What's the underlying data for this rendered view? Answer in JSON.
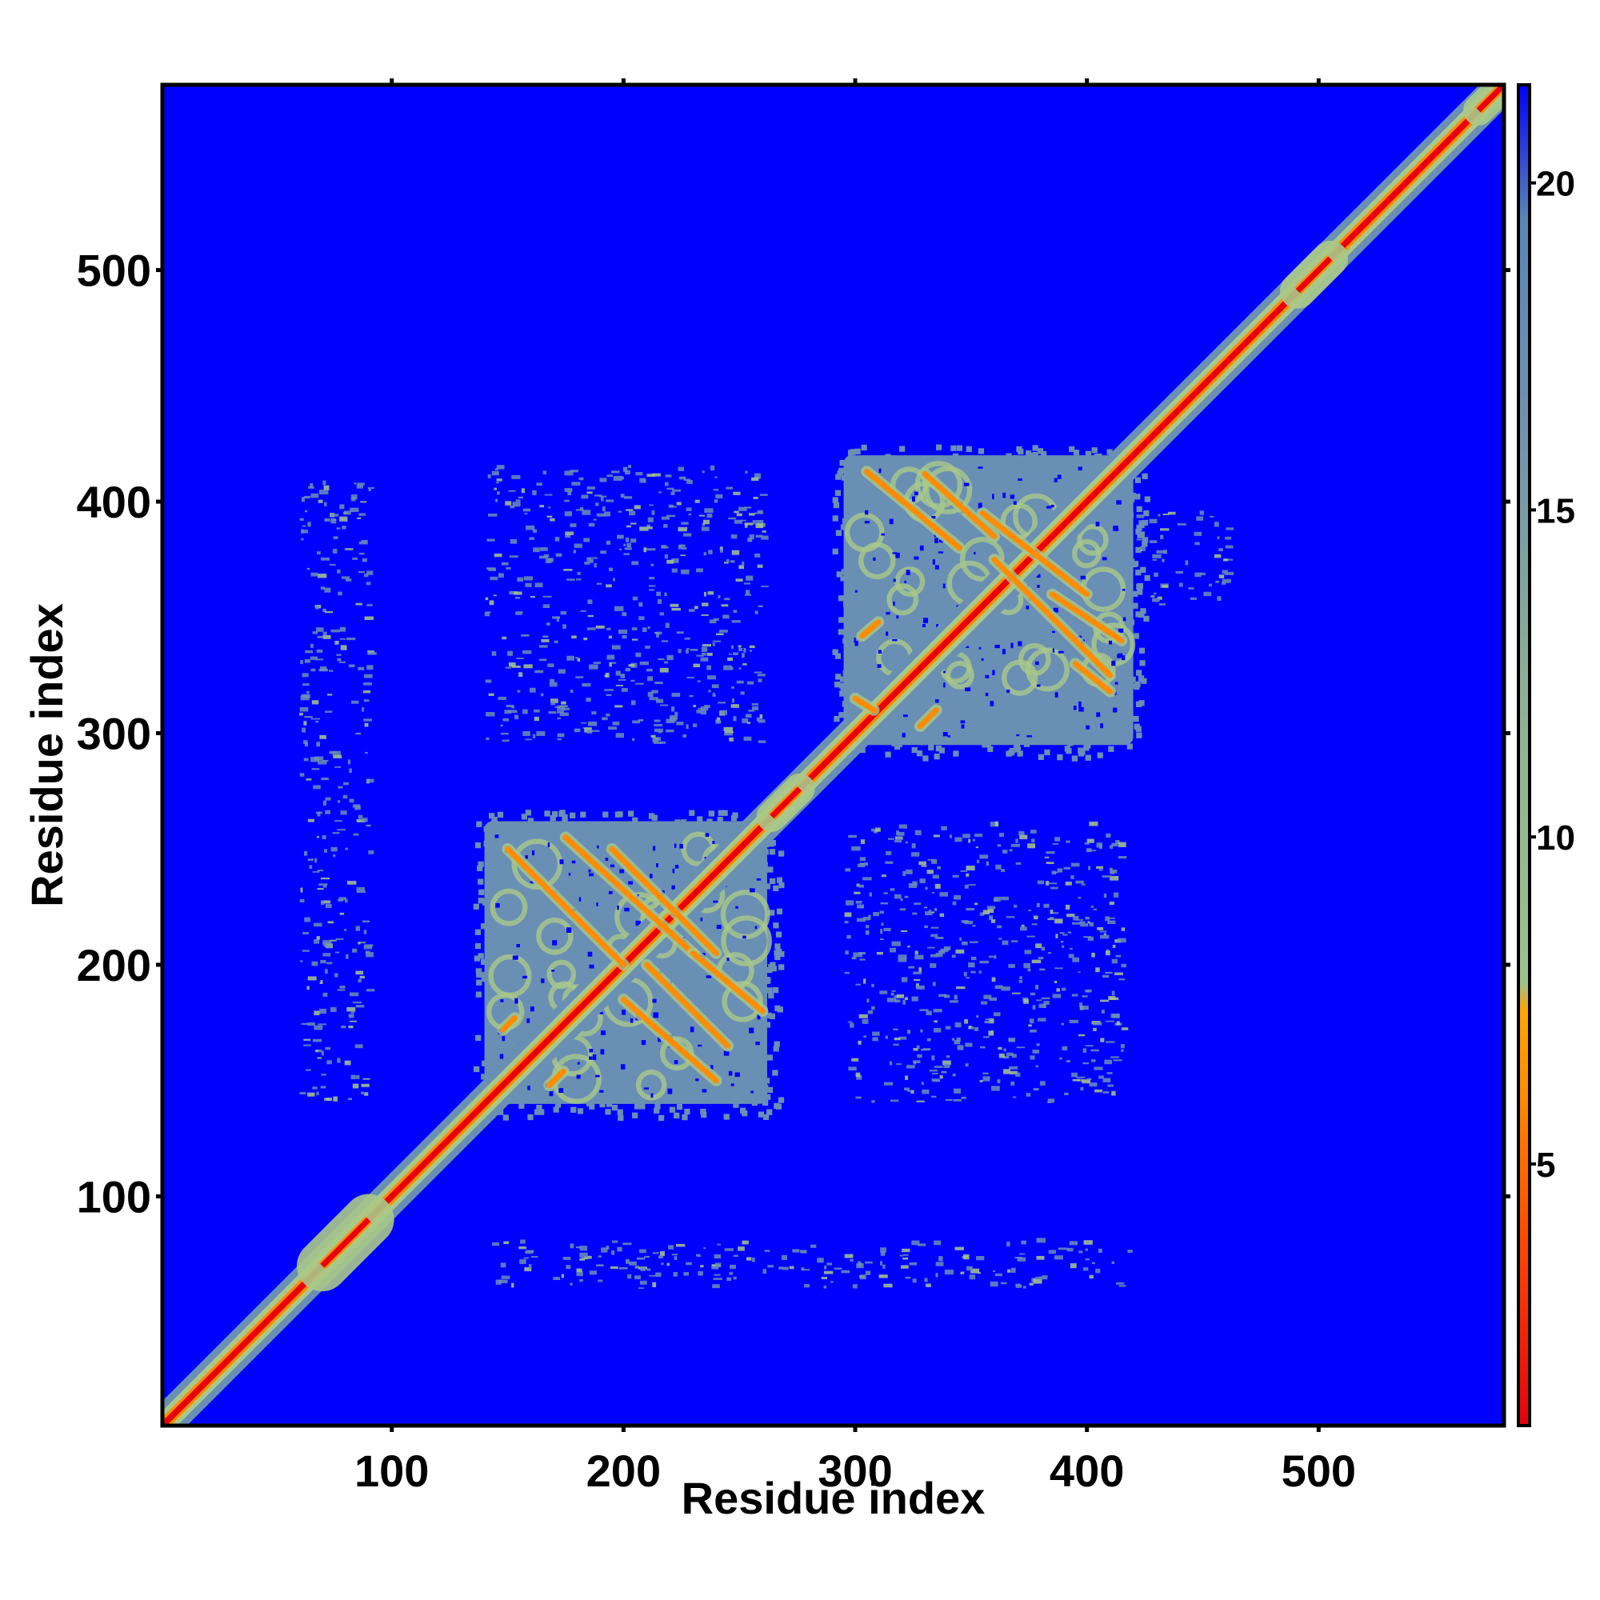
{
  "chart_data": {
    "type": "heatmap",
    "title": "",
    "xlabel": "Residue index",
    "ylabel": "Residue index",
    "xlim": [
      1,
      580
    ],
    "ylim": [
      1,
      580
    ],
    "x_ticks": [
      100,
      200,
      300,
      400,
      500
    ],
    "y_ticks": [
      100,
      200,
      300,
      400,
      500
    ],
    "colorbar": {
      "range": [
        1,
        21.5
      ],
      "ticks": [
        5,
        10,
        15,
        20
      ],
      "colors": {
        "close": "#e8000b",
        "mid": "#ff8c00",
        "transition": "#9fc08a",
        "far": "#5a86b5",
        "background": "#0000ff"
      }
    },
    "colors": {
      "background": "#0000ff",
      "diagonal": "#e8000b",
      "strand": "#ff8c00",
      "domain": "#6a8fb4",
      "halo": "#a9c88a"
    },
    "domains": [
      {
        "name": "domain-1",
        "start": 140,
        "end": 262
      },
      {
        "name": "domain-2",
        "start": 295,
        "end": 420
      }
    ],
    "inter_domain_patches": [
      {
        "x": [
          140,
          260
        ],
        "y": [
          295,
          415
        ]
      },
      {
        "x": [
          295,
          415
        ],
        "y": [
          140,
          260
        ]
      },
      {
        "x": [
          60,
          90
        ],
        "y": [
          140,
          410
        ]
      },
      {
        "x": [
          140,
          420
        ],
        "y": [
          60,
          80
        ]
      },
      {
        "x": [
          420,
          460
        ],
        "y": [
          355,
          395
        ]
      }
    ],
    "diagonal_blobs": [
      {
        "center": 80,
        "width": 10
      },
      {
        "center": 270,
        "width": 6
      },
      {
        "center": 498,
        "width": 7
      },
      {
        "center": 575,
        "width": 6
      }
    ],
    "contact_segments": [
      {
        "from": [
          150,
          250
        ],
        "to": [
          200,
          200
        ]
      },
      {
        "from": [
          175,
          255
        ],
        "to": [
          230,
          205
        ]
      },
      {
        "from": [
          195,
          250
        ],
        "to": [
          240,
          205
        ]
      },
      {
        "from": [
          230,
          205
        ],
        "to": [
          260,
          180
        ]
      },
      {
        "from": [
          210,
          200
        ],
        "to": [
          245,
          165
        ]
      },
      {
        "from": [
          200,
          185
        ],
        "to": [
          240,
          150
        ]
      },
      {
        "from": [
          148,
          172
        ],
        "to": [
          153,
          177
        ]
      },
      {
        "from": [
          168,
          148
        ],
        "to": [
          174,
          154
        ]
      },
      {
        "from": [
          305,
          413
        ],
        "to": [
          345,
          380
        ]
      },
      {
        "from": [
          330,
          412
        ],
        "to": [
          360,
          385
        ]
      },
      {
        "from": [
          355,
          395
        ],
        "to": [
          400,
          360
        ]
      },
      {
        "from": [
          360,
          375
        ],
        "to": [
          410,
          325
        ]
      },
      {
        "from": [
          385,
          360
        ],
        "to": [
          415,
          340
        ]
      },
      {
        "from": [
          395,
          330
        ],
        "to": [
          410,
          318
        ]
      },
      {
        "from": [
          303,
          342
        ],
        "to": [
          310,
          348
        ]
      },
      {
        "from": [
          328,
          303
        ],
        "to": [
          335,
          310
        ]
      },
      {
        "from": [
          300,
          315
        ],
        "to": [
          308,
          310
        ]
      }
    ]
  }
}
